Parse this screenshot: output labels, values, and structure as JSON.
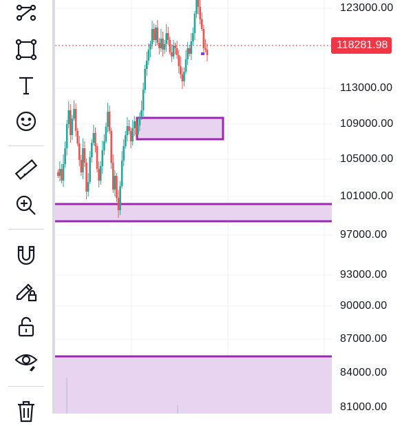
{
  "toolbar": {
    "tools": [
      {
        "name": "trend-line-tool",
        "icon": "trend-lines-icon"
      },
      {
        "name": "rectangle-tool",
        "icon": "rectangle-icon"
      },
      {
        "name": "text-tool",
        "icon": "text-T-icon"
      },
      {
        "name": "icon-emoji-tool",
        "icon": "smiley-icon"
      },
      {
        "name": "measure-tool",
        "icon": "ruler-icon"
      },
      {
        "name": "zoom-in-tool",
        "icon": "zoom-in-icon"
      },
      {
        "name": "magnet-mode-tool",
        "icon": "magnet-icon"
      },
      {
        "name": "lock-drawing-mode-tool",
        "icon": "pencil-lock-icon"
      },
      {
        "name": "lock-all-drawings-tool",
        "icon": "unlock-icon"
      },
      {
        "name": "hide-drawings-tool",
        "icon": "eye-icon"
      },
      {
        "name": "remove-drawings-tool",
        "icon": "trash-icon"
      }
    ]
  },
  "price_axis": {
    "ticks": [
      "123000.00",
      "113000.00",
      "109000.00",
      "105000.00",
      "101000.00",
      "97000.00",
      "93000.00",
      "90000.00",
      "87000.00",
      "84000.00",
      "81000.00"
    ],
    "current_price": "118281.98"
  },
  "colors": {
    "up_candle": "#26a69a",
    "down_candle": "#ef5350",
    "zone_fill": "#e8d3f0",
    "zone_border": "#9c27b0",
    "price_badge": "#f23645",
    "grid": "#eceff2"
  }
}
